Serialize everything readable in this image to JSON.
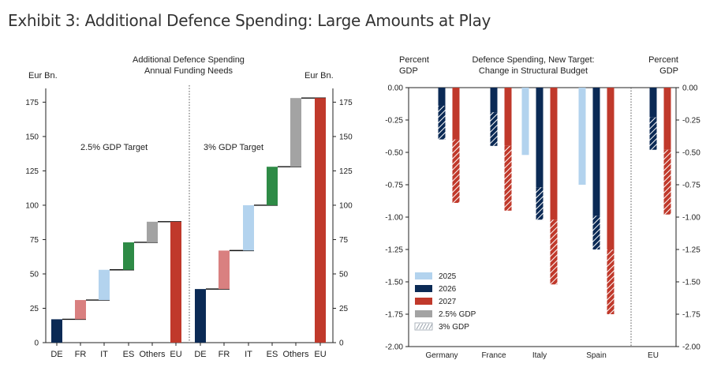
{
  "exhibit_title": "Exhibit 3: Additional Defence Spending: Large Amounts at Play",
  "colors": {
    "de": "#0b2a55",
    "fr": "#d98080",
    "it": "#b3d3ee",
    "es": "#2e8b46",
    "others": "#a3a3a3",
    "eu": "#c0392b",
    "y2025": "#b3d3ee",
    "y2026": "#0b2a55",
    "y2027": "#c0392b",
    "gdp25": "#a3a3a3"
  },
  "chart_data": [
    {
      "type": "bar",
      "subtype": "waterfall",
      "title": "Additional Defence Spending\nAnnual Funding Needs",
      "ylabel_left": "Eur Bn.",
      "ylabel_right": "Eur Bn.",
      "ylim": [
        0,
        185
      ],
      "yticks": [
        0,
        25,
        50,
        75,
        100,
        125,
        150,
        175
      ],
      "panels": [
        {
          "label": "2.5% GDP Target",
          "categories": [
            "DE",
            "FR",
            "IT",
            "ES",
            "Others",
            "EU"
          ],
          "values": [
            17,
            14,
            22,
            20,
            15,
            88
          ],
          "cumulative_end": [
            17,
            31,
            53,
            73,
            88,
            88
          ]
        },
        {
          "label": "3% GDP Target",
          "categories": [
            "DE",
            "FR",
            "IT",
            "ES",
            "Others",
            "EU"
          ],
          "values": [
            39,
            28,
            33,
            28,
            50,
            178
          ],
          "cumulative_end": [
            39,
            67,
            100,
            128,
            178,
            178
          ]
        }
      ]
    },
    {
      "type": "bar",
      "title": "Defence Spending, New Target:\nChange in Structural Budget",
      "ylabel_left": "Percent\nGDP",
      "ylabel_right": "Percent\nGDP",
      "ylim": [
        -2.0,
        0.0
      ],
      "yticks": [
        "0.00",
        "-0.25",
        "-0.50",
        "-0.75",
        "-1.00",
        "-1.25",
        "-1.50",
        "-1.75",
        "-2.00"
      ],
      "categories": [
        "Germany",
        "France",
        "Italy",
        "Spain",
        "EU"
      ],
      "series": [
        {
          "name": "2025",
          "values_2_5pct": [
            null,
            null,
            -0.52,
            -0.75,
            null
          ],
          "values_3pct_total": [
            null,
            null,
            -0.52,
            -0.75,
            null
          ]
        },
        {
          "name": "2026",
          "values_2_5pct": [
            -0.14,
            -0.19,
            -0.77,
            -0.99,
            -0.23
          ],
          "values_3pct_total": [
            -0.4,
            -0.45,
            -1.02,
            -1.25,
            -0.48
          ]
        },
        {
          "name": "2027",
          "values_2_5pct": [
            -0.4,
            -0.45,
            -1.02,
            -1.25,
            -0.48
          ],
          "values_3pct_total": [
            -0.89,
            -0.95,
            -1.52,
            -1.75,
            -0.98
          ]
        }
      ],
      "legend": [
        "2025",
        "2026",
        "2027",
        "2.5% GDP",
        "3% GDP"
      ],
      "legend_placement": "bottom-left"
    }
  ]
}
